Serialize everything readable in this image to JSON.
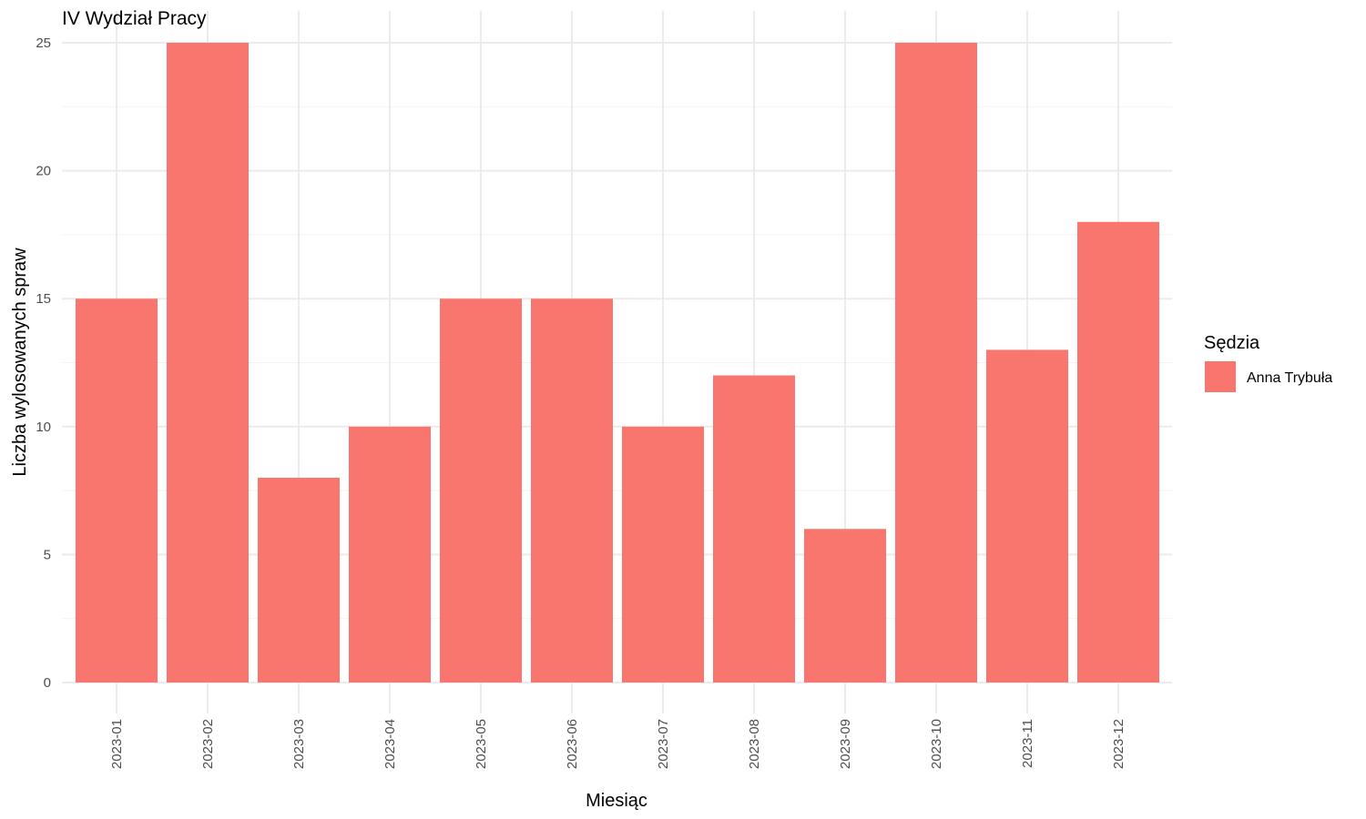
{
  "chart_data": {
    "type": "bar",
    "title": "IV Wydział Pracy",
    "xlabel": "Miesiąc",
    "ylabel": "Liczba wylosowanych spraw",
    "categories": [
      "2023-01",
      "2023-02",
      "2023-03",
      "2023-04",
      "2023-05",
      "2023-06",
      "2023-07",
      "2023-08",
      "2023-09",
      "2023-10",
      "2023-11",
      "2023-12"
    ],
    "series": [
      {
        "name": "Anna Trybuła",
        "values": [
          15,
          25,
          8,
          10,
          15,
          15,
          10,
          12,
          6,
          25,
          13,
          18
        ],
        "color": "#F8766D"
      }
    ],
    "ylim": [
      0,
      25
    ],
    "yticks": [
      0,
      5,
      10,
      15,
      20,
      25
    ],
    "grid": true,
    "legend": {
      "title": "Sędzia",
      "position": "right"
    }
  }
}
